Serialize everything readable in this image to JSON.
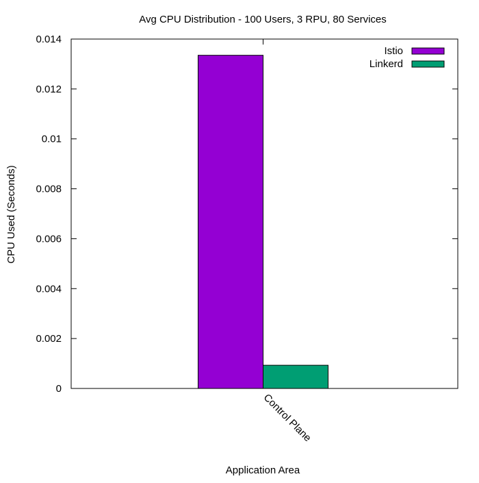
{
  "chart_data": {
    "type": "bar",
    "title": "Avg CPU Distribution - 100 Users, 3 RPU, 80 Services",
    "xlabel": "Application Area",
    "ylabel": "CPU Used (Seconds)",
    "categories": [
      "Control Plane"
    ],
    "series": [
      {
        "name": "Istio",
        "values": [
          0.01335
        ],
        "color": "#9400d3"
      },
      {
        "name": "Linkerd",
        "values": [
          0.00093
        ],
        "color": "#009e73"
      }
    ],
    "ylim": [
      0,
      0.014
    ],
    "yticks": [
      "0",
      "0.002",
      "0.004",
      "0.006",
      "0.008",
      "0.01",
      "0.012",
      "0.014"
    ],
    "legend_position": "top-right",
    "grid": false
  }
}
